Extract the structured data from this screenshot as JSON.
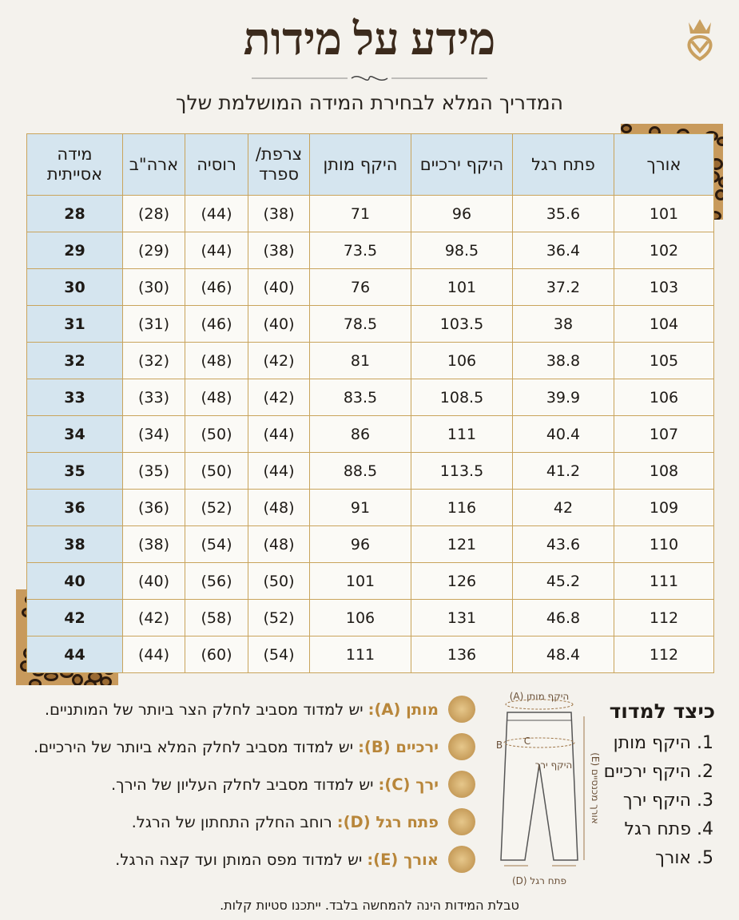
{
  "header": {
    "title": "מידע על מידות",
    "subtitle": "המדריך המלא לבחירת המידה המושלמת שלך"
  },
  "table": {
    "headers": [
      "אורך",
      "פתח רגל",
      "היקף ירכיים",
      "היקף מותן",
      "צרפת/ ספרד",
      "רוסיה",
      "ארה\"ב",
      "מידה אסייתית"
    ],
    "rows": [
      [
        101,
        35.6,
        96,
        71,
        "(38)",
        "(44)",
        "(28)",
        28
      ],
      [
        102,
        36.4,
        98.5,
        73.5,
        "(38)",
        "(44)",
        "(29)",
        29
      ],
      [
        103,
        37.2,
        101,
        76,
        "(40)",
        "(46)",
        "(30)",
        30
      ],
      [
        104,
        38,
        103.5,
        78.5,
        "(40)",
        "(46)",
        "(31)",
        31
      ],
      [
        105,
        38.8,
        106,
        81,
        "(42)",
        "(48)",
        "(32)",
        32
      ],
      [
        106,
        39.9,
        108.5,
        83.5,
        "(42)",
        "(48)",
        "(33)",
        33
      ],
      [
        107,
        40.4,
        111,
        86,
        "(44)",
        "(50)",
        "(34)",
        34
      ],
      [
        108,
        41.2,
        113.5,
        88.5,
        "(44)",
        "(50)",
        "(35)",
        35
      ],
      [
        109,
        42,
        116,
        91,
        "(48)",
        "(52)",
        "(36)",
        36
      ],
      [
        110,
        43.6,
        121,
        96,
        "(48)",
        "(54)",
        "(38)",
        38
      ],
      [
        111,
        45.2,
        126,
        101,
        "(50)",
        "(56)",
        "(40)",
        40
      ],
      [
        112,
        46.8,
        131,
        106,
        "(52)",
        "(58)",
        "(42)",
        42
      ],
      [
        112,
        48.4,
        136,
        111,
        "(54)",
        "(60)",
        "(44)",
        44
      ]
    ]
  },
  "instructions": [
    {
      "term": "מותן (A):",
      "text": "יש למדוד מסביב לחלק הצר ביותר של המותניים."
    },
    {
      "term": "ירכיים (B):",
      "text": "יש למדוד מסביב לחלק המלא ביותר של הירכיים."
    },
    {
      "term": "ירך (C):",
      "text": "יש למדוד מסביב לחלק העליון של הירך."
    },
    {
      "term": "פתח רגל (D):",
      "text": "רוחב החלק התחתון  של הרגל."
    },
    {
      "term": "אורך (E):",
      "text": "יש למדוד מפס המותן ועד קצה הרגל."
    }
  ],
  "diagram": {
    "waist": "היקף מותן (A)",
    "hips": "B",
    "thigh_mark": "C",
    "thigh": "היקף ירך",
    "length": "אורך מכנסיים (E)",
    "leg_opening": "פתח רגל (D)"
  },
  "how_to": {
    "title": "כיצד למדוד",
    "items": [
      "1. היקף מותן",
      "2. היקף ירכיים",
      "3. היקף ירך",
      "4. פתח רגל",
      "5. אורך"
    ]
  },
  "footer": "טבלת המידות הינה להמחשה בלבד. ייתכנו סטיות קלות."
}
